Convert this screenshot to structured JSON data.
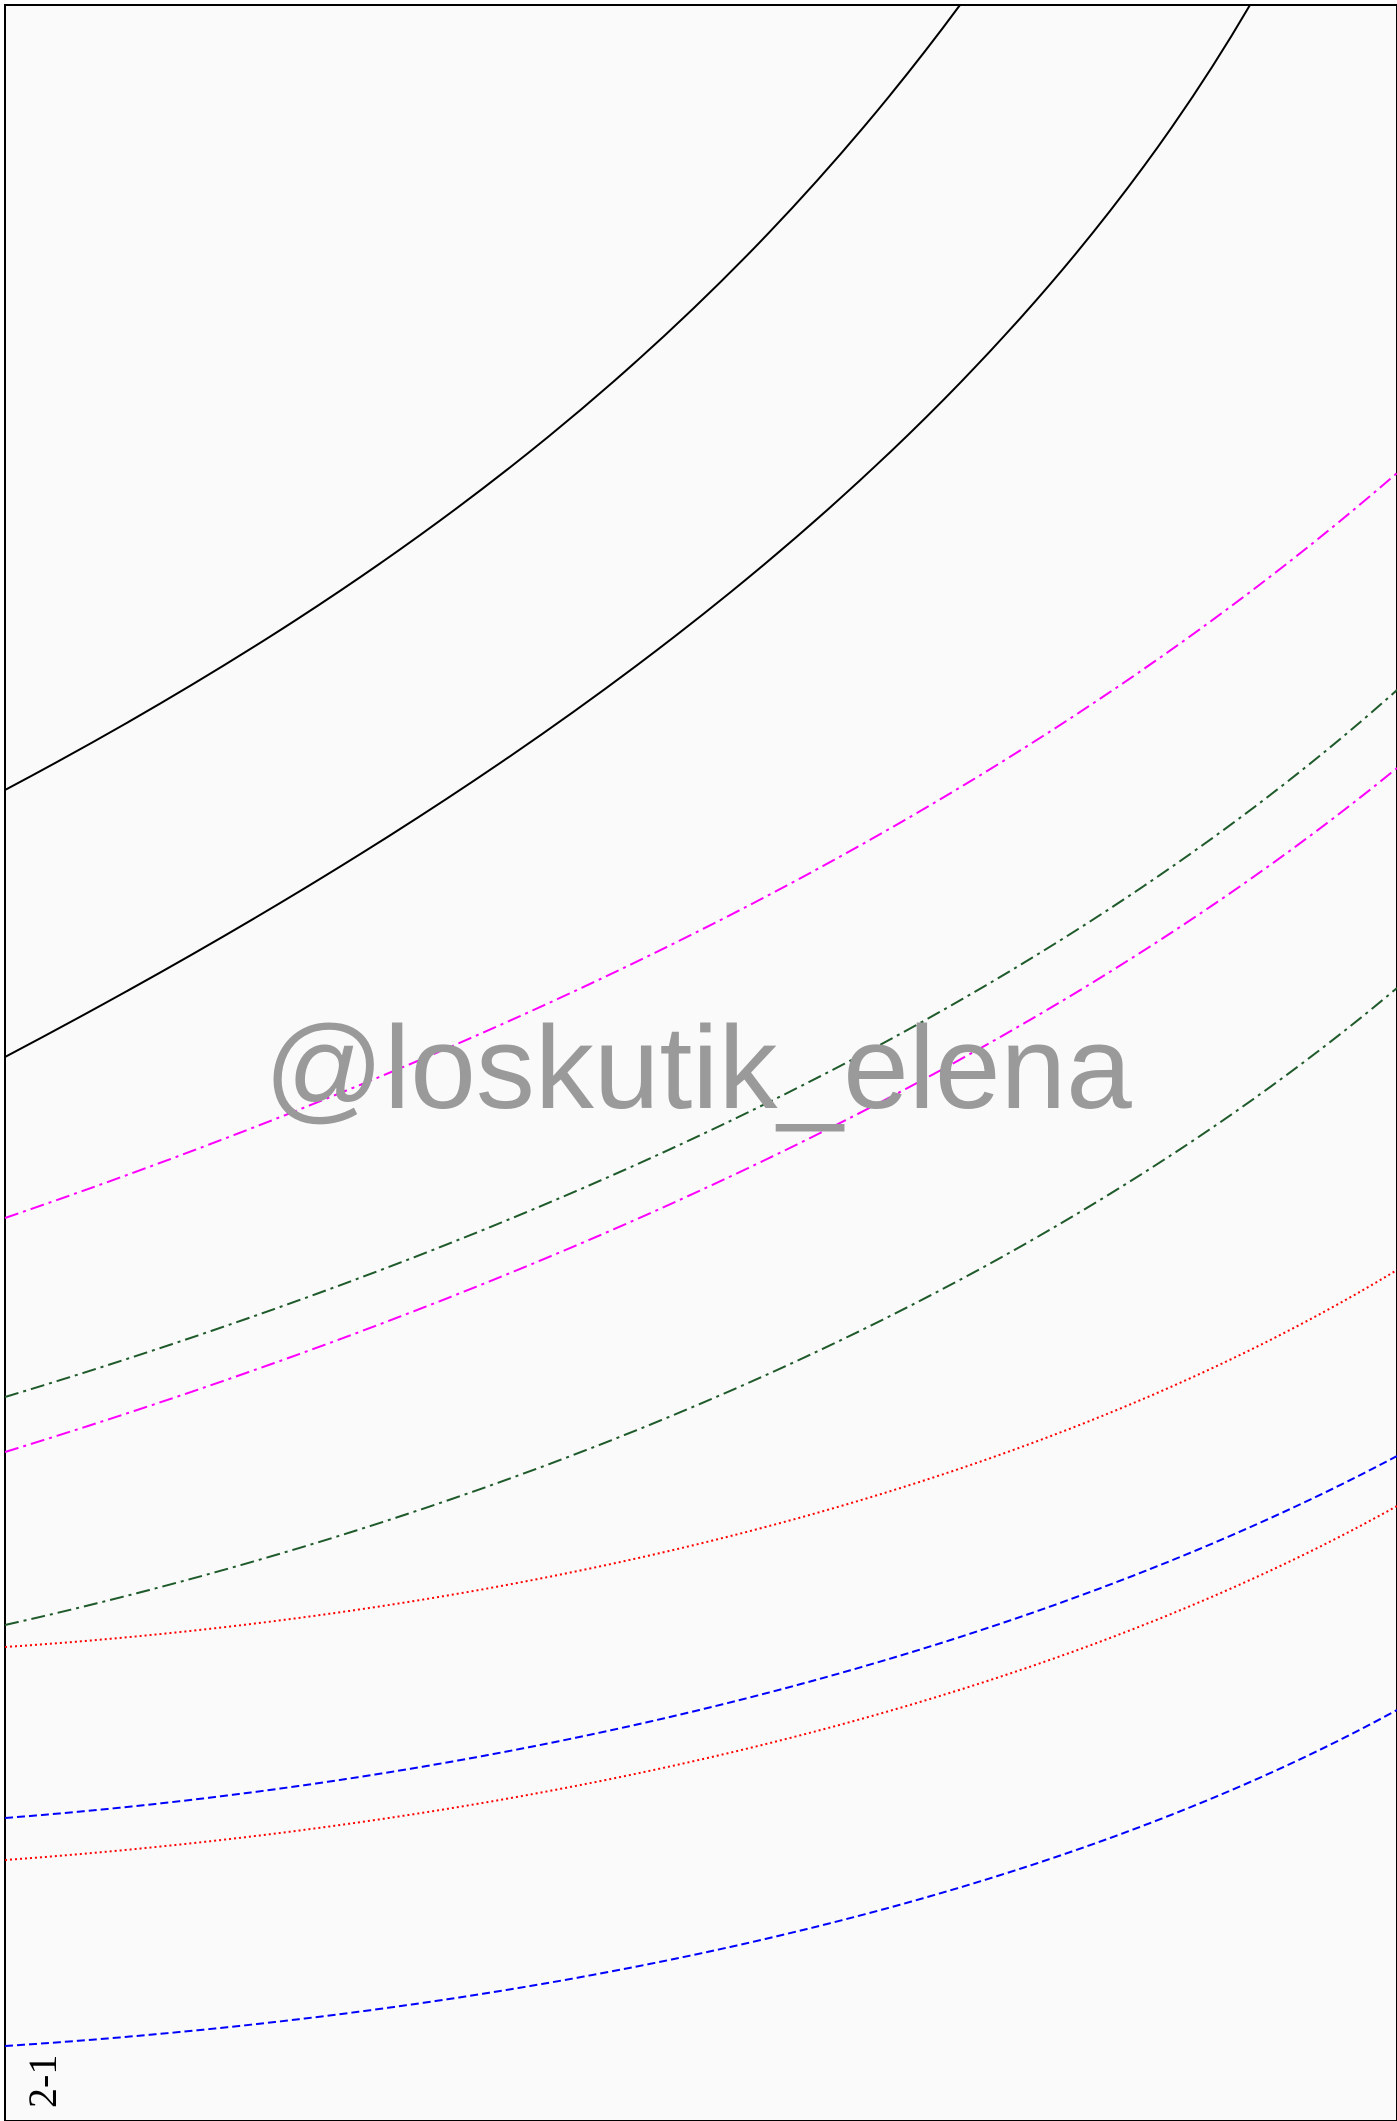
{
  "watermark": {
    "text": "@loskutik_elena",
    "color": "#9a9a9a"
  },
  "page_label": "2-1",
  "colors": {
    "background": "#fafafa",
    "border": "#000000",
    "solid_lines": "#000000",
    "magenta_lines": "#ff00ff",
    "green_lines": "#1e5a2a",
    "red_lines": "#ff0000",
    "blue_lines": "#0000ff"
  },
  "line_styles": [
    "solid",
    "dash-dot",
    "dash-dot",
    "dotted",
    "dashed"
  ]
}
